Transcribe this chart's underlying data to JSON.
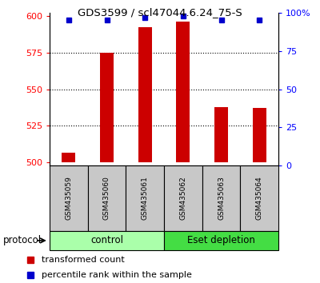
{
  "title": "GDS3599 / scl47044.6.24_75-S",
  "categories": [
    "GSM435059",
    "GSM435060",
    "GSM435061",
    "GSM435062",
    "GSM435063",
    "GSM435064"
  ],
  "red_values": [
    507,
    575,
    592,
    596,
    538,
    537
  ],
  "blue_values": [
    95,
    95,
    97,
    98,
    95,
    95
  ],
  "ylim_left": [
    498,
    602
  ],
  "ylim_right": [
    0,
    100
  ],
  "yticks_left": [
    500,
    525,
    550,
    575,
    600
  ],
  "yticks_right": [
    0,
    25,
    50,
    75,
    100
  ],
  "ytick_labels_right": [
    "0",
    "25",
    "50",
    "75",
    "100%"
  ],
  "control_color": "#AAFFAA",
  "eset_color": "#44DD44",
  "protocol_label": "protocol",
  "legend_red": "transformed count",
  "legend_blue": "percentile rank within the sample",
  "red_color": "#CC0000",
  "blue_color": "#0000CC",
  "label_area_color": "#C8C8C8",
  "base_value": 500,
  "grid_dotted_vals": [
    525,
    550,
    575
  ]
}
